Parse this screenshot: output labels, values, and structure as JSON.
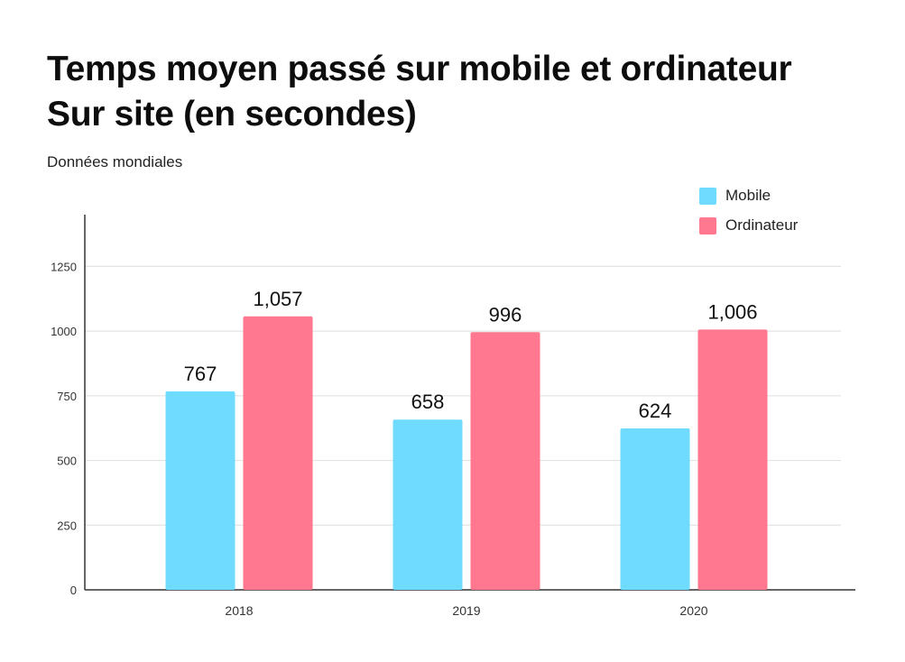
{
  "title_line1": "Temps moyen passé sur mobile et ordinateur",
  "title_line2": "Sur site (en secondes)",
  "subtitle": "Données mondiales",
  "colors": {
    "mobile": "#6fdbff",
    "ordinateur": "#ff788f",
    "grid": "#e3e3e3",
    "axis": "#333333"
  },
  "chart_data": {
    "type": "bar",
    "title": "Temps moyen passé sur mobile et ordinateur Sur site (en secondes)",
    "subtitle": "Données mondiales",
    "categories": [
      "2018",
      "2019",
      "2020"
    ],
    "series": [
      {
        "name": "Mobile",
        "values": [
          767,
          658,
          624
        ],
        "labels": [
          "767",
          "658",
          "624"
        ]
      },
      {
        "name": "Ordinateur",
        "values": [
          1057,
          996,
          1006
        ],
        "labels": [
          "1,057",
          "996",
          "1,006"
        ]
      }
    ],
    "yticks": [
      0,
      250,
      500,
      750,
      1000,
      1250
    ],
    "ylim": [
      0,
      1450
    ],
    "xlabel": "",
    "ylabel": "",
    "grid": true,
    "legend": "top-right"
  }
}
